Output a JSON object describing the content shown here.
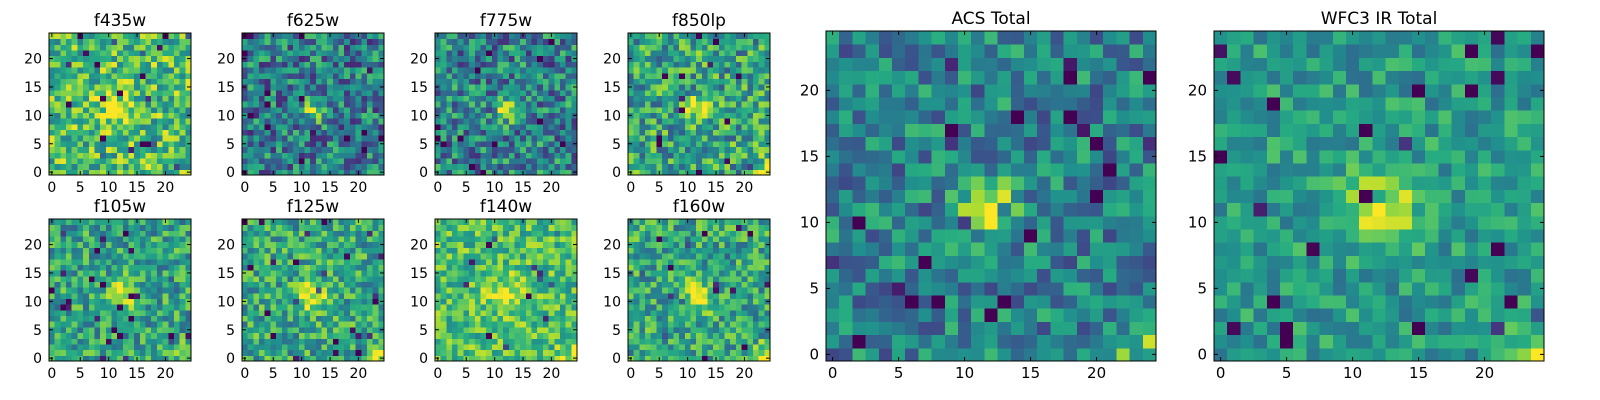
{
  "chart_data": {
    "type": "heatmap",
    "colormap": "viridis",
    "grid_size": 25,
    "panels": [
      {
        "title": "f435w",
        "source_cx": 12,
        "source_cy": 11,
        "source_amp": 0.25,
        "source_sigma": 2.0,
        "base": 0.7,
        "noise": 0.28,
        "corner_bright": false,
        "xticks": [
          0,
          5,
          10,
          15,
          20
        ],
        "yticks": [
          0,
          5,
          10,
          15,
          20
        ]
      },
      {
        "title": "f625w",
        "source_cx": 12,
        "source_cy": 11,
        "source_amp": 0.55,
        "source_sigma": 1.3,
        "base": 0.42,
        "noise": 0.3,
        "corner_bright": false,
        "xticks": [
          0,
          5,
          10,
          15,
          20
        ],
        "yticks": [
          0,
          5,
          10,
          15,
          20
        ]
      },
      {
        "title": "f775w",
        "source_cx": 12,
        "source_cy": 11,
        "source_amp": 0.55,
        "source_sigma": 1.3,
        "base": 0.45,
        "noise": 0.3,
        "corner_bright": false,
        "xticks": [
          0,
          5,
          10,
          15,
          20
        ],
        "yticks": [
          0,
          5,
          10,
          15,
          20
        ]
      },
      {
        "title": "f850lp",
        "source_cx": 12,
        "source_cy": 11,
        "source_amp": 0.35,
        "source_sigma": 1.6,
        "base": 0.58,
        "noise": 0.3,
        "corner_bright": true,
        "xticks": [
          0,
          5,
          10,
          15,
          20
        ],
        "yticks": [
          0,
          5,
          10,
          15,
          20
        ]
      },
      {
        "title": "f105w",
        "source_cx": 12,
        "source_cy": 11,
        "source_amp": 0.35,
        "source_sigma": 2.0,
        "base": 0.58,
        "noise": 0.25,
        "corner_bright": true,
        "xticks": [
          0,
          5,
          10,
          15,
          20
        ],
        "yticks": [
          0,
          5,
          10,
          15,
          20
        ]
      },
      {
        "title": "f125w",
        "source_cx": 12,
        "source_cy": 11,
        "source_amp": 0.35,
        "source_sigma": 2.0,
        "base": 0.6,
        "noise": 0.25,
        "corner_bright": true,
        "xticks": [
          0,
          5,
          10,
          15,
          20
        ],
        "yticks": [
          0,
          5,
          10,
          15,
          20
        ]
      },
      {
        "title": "f140w",
        "source_cx": 12,
        "source_cy": 11,
        "source_amp": 0.25,
        "source_sigma": 2.2,
        "base": 0.7,
        "noise": 0.22,
        "corner_bright": true,
        "xticks": [
          0,
          5,
          10,
          15,
          20
        ],
        "yticks": [
          0,
          5,
          10,
          15,
          20
        ]
      },
      {
        "title": "f160w",
        "source_cx": 12,
        "source_cy": 11,
        "source_amp": 0.35,
        "source_sigma": 2.0,
        "base": 0.6,
        "noise": 0.25,
        "corner_bright": true,
        "xticks": [
          0,
          5,
          10,
          15,
          20
        ],
        "yticks": [
          0,
          5,
          10,
          15,
          20
        ]
      },
      {
        "title": "ACS Total",
        "source_cx": 12,
        "source_cy": 11,
        "source_amp": 0.55,
        "source_sigma": 1.5,
        "base": 0.45,
        "noise": 0.24,
        "corner_bright": true,
        "xticks": [
          0,
          5,
          10,
          15,
          20
        ],
        "yticks": [
          0,
          5,
          10,
          15,
          20
        ]
      },
      {
        "title": "WFC3 IR Total",
        "source_cx": 12,
        "source_cy": 11,
        "source_amp": 0.45,
        "source_sigma": 2.0,
        "base": 0.55,
        "noise": 0.18,
        "corner_bright": true,
        "xticks": [
          0,
          5,
          10,
          15,
          20
        ],
        "yticks": [
          0,
          5,
          10,
          15,
          20
        ]
      }
    ]
  }
}
